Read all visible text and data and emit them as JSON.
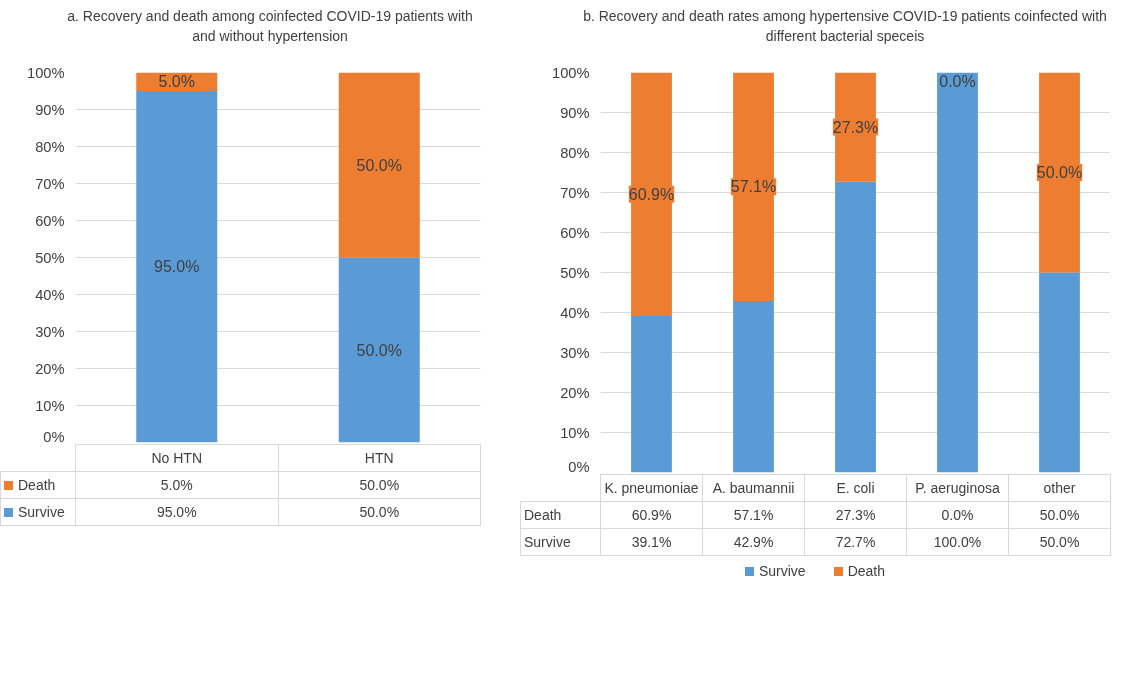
{
  "chart_data": [
    {
      "type": "bar",
      "stacked": true,
      "title": "a. Recovery and death among coinfected COVID-19 patients with and without hypertension",
      "categories": [
        "No HTN",
        "HTN"
      ],
      "series": [
        {
          "name": "Survive",
          "color": "#5b9bd5",
          "values": [
            95.0,
            50.0
          ],
          "value_labels": [
            "95.0%",
            "50.0%"
          ],
          "data_labels": true
        },
        {
          "name": "Death",
          "color": "#ed7d31",
          "values": [
            5.0,
            50.0
          ],
          "value_labels": [
            "5.0%",
            "50.0%"
          ],
          "data_labels": true
        }
      ],
      "data_labels": true,
      "ylim": [
        0,
        100
      ],
      "yticks": [
        {
          "value": 0,
          "label": "0%"
        },
        {
          "value": 10,
          "label": "10%"
        },
        {
          "value": 20,
          "label": "20%"
        },
        {
          "value": 30,
          "label": "30%"
        },
        {
          "value": 40,
          "label": "40%"
        },
        {
          "value": 50,
          "label": "50%"
        },
        {
          "value": 60,
          "label": "60%"
        },
        {
          "value": 70,
          "label": "70%"
        },
        {
          "value": 80,
          "label": "80%"
        },
        {
          "value": 90,
          "label": "90%"
        },
        {
          "value": 100,
          "label": "100%"
        }
      ],
      "grid": "y",
      "legend": "bottom left"
    },
    {
      "type": "bar",
      "stacked": true,
      "title": "b. Recovery and death rates among hypertensive COVID-19 patients coinfected with different bacterial speceis",
      "categories": [
        "K. pneumoniae",
        "A. baumannii",
        "E. coli",
        "P. aeruginosa",
        "other"
      ],
      "series": [
        {
          "name": "Survive",
          "color": "#5b9bd5",
          "values": [
            39.1,
            42.9,
            72.7,
            100.0,
            50.0
          ],
          "value_labels": [
            "39.1%",
            "42.9%",
            "72.7%",
            "100.0%",
            "50.0%"
          ]
        },
        {
          "name": "Death",
          "color": "#ed7d31",
          "values": [
            60.9,
            57.1,
            27.3,
            0.0,
            50.0
          ],
          "value_labels": [
            "60.9%",
            "57.1%",
            "27.3%",
            "0.0%",
            "50.0%"
          ],
          "data_labels": true
        }
      ],
      "data_labels": true,
      "ylim": [
        0,
        100
      ],
      "yticks": [
        {
          "value": 0,
          "label": "0%"
        },
        {
          "value": 10,
          "label": "10%"
        },
        {
          "value": 20,
          "label": "20%"
        },
        {
          "value": 30,
          "label": "30%"
        },
        {
          "value": 40,
          "label": "40%"
        },
        {
          "value": 50,
          "label": "50%"
        },
        {
          "value": 60,
          "label": "60%"
        },
        {
          "value": 70,
          "label": "70%"
        },
        {
          "value": 80,
          "label": "80%"
        },
        {
          "value": 90,
          "label": "90%"
        },
        {
          "value": 100,
          "label": "100%"
        }
      ],
      "grid": "y",
      "legend": "bottom"
    }
  ]
}
